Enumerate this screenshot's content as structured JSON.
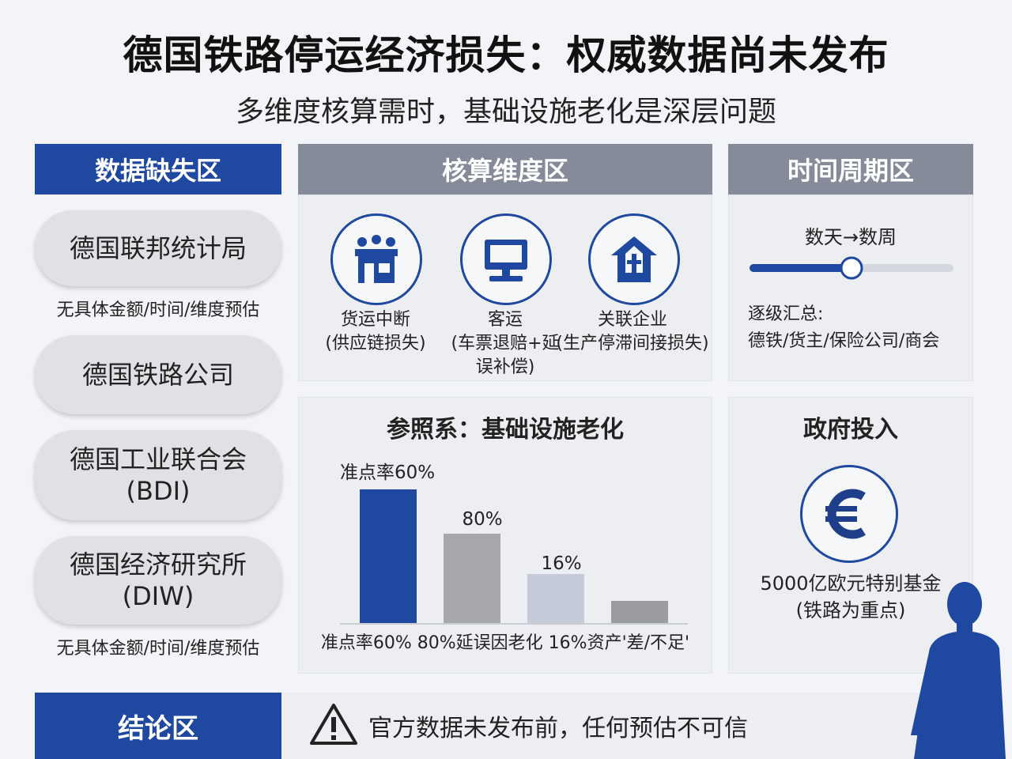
{
  "title": "德国铁路停运经济损失：权威数据尚未发布",
  "subtitle": "多维度核算需时，基础设施老化是深层问题",
  "sections": {
    "missing": "数据缺失区",
    "dimensions": "核算维度区",
    "period": "时间周期区"
  },
  "sources": [
    {
      "line1": "德国联邦统计局",
      "line2": ""
    },
    {
      "line1": "德国铁路公司",
      "line2": ""
    },
    {
      "line1": "德国工业联合会",
      "line2": "(BDI)"
    },
    {
      "line1": "德国经济研究所",
      "line2": "(DIW)"
    }
  ],
  "missing_note_1": "无具体金额/时间/维度预估",
  "missing_note_2": "无具体金额/时间/维度预估",
  "dimensions": [
    {
      "icon": "warehouse-icon",
      "line1": "货运中断",
      "line2": "(供应链损失)",
      "line3": ""
    },
    {
      "icon": "monitor-icon",
      "line1": "客运",
      "line2": "(车票退赔+延",
      "line3": "误补偿)"
    },
    {
      "icon": "house-network-icon",
      "line1": "关联企业",
      "line2": "(生产停滞间接损失)",
      "line3": ""
    }
  ],
  "period": {
    "range": "数天→数周",
    "progress": 0.5,
    "label1": "逐级汇总:",
    "label2": "德铁/货主/保险公司/商会"
  },
  "reference": {
    "title": "参照系：基础设施老化",
    "bar_label_1": "准点率60%",
    "bar_label_2": "80%",
    "bar_label_3": "16%",
    "caption": "准点率60% 80%延误因老化 16%资产'差/不足'"
  },
  "chart_data": {
    "type": "bar",
    "values": [
      60,
      80,
      16,
      null
    ],
    "bar_colors": [
      "#1f48a0",
      "#a6a8ad",
      "#c6cbd9",
      "#9a9ca1"
    ],
    "visual_heights": [
      0.9,
      0.6,
      0.33,
      0.15
    ]
  },
  "government": {
    "title": "政府投入",
    "icon": "euro-icon",
    "line1": "5000亿欧元特别基金",
    "line2": "(铁路为重点)"
  },
  "conclusion": {
    "label": "结论区",
    "icon": "warning-icon",
    "text": "官方数据未发布前，任何预估不可信"
  },
  "colors": {
    "accent": "#1f48a0",
    "header_gray": "#858b98"
  }
}
